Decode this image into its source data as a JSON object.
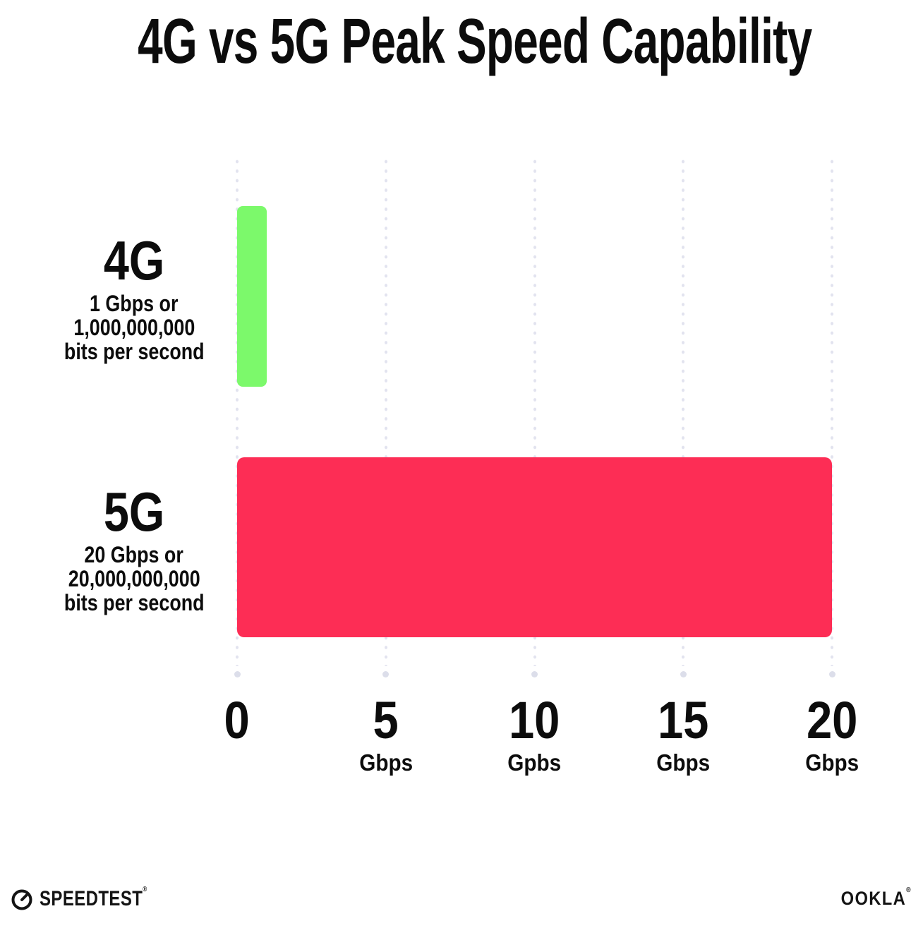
{
  "title": "4G vs 5G Peak Speed Capability",
  "chart_data": {
    "type": "bar",
    "orientation": "horizontal",
    "title": "4G vs 5G Peak Speed Capability",
    "xlabel": "Gbps",
    "xlim": [
      0,
      20
    ],
    "grid": "dotted-vertical",
    "legend": "none",
    "categories": [
      "4G",
      "5G"
    ],
    "values": [
      1,
      20
    ],
    "series": [
      {
        "label": "4G",
        "value": 1,
        "color": "#7cf96b",
        "description_lines": [
          "1 Gbps or",
          "1,000,000,000",
          "bits per second"
        ]
      },
      {
        "label": "5G",
        "value": 20,
        "color": "#fd2d55",
        "description_lines": [
          "20 Gbps or",
          "20,000,000,000",
          "bits per second"
        ]
      }
    ],
    "ticks": [
      {
        "value": 0,
        "label": "0",
        "unit": ""
      },
      {
        "value": 5,
        "label": "5",
        "unit": "Gbps"
      },
      {
        "value": 10,
        "label": "10",
        "unit": "Gpbs"
      },
      {
        "value": 15,
        "label": "15",
        "unit": "Gbps"
      },
      {
        "value": 20,
        "label": "20",
        "unit": "Gbps"
      }
    ]
  },
  "footer": {
    "speedtest_label": "SPEEDTEST",
    "speedtest_trademark": "®",
    "ookla_label": "OOKLA",
    "ookla_trademark": "®"
  },
  "colors": {
    "bar_4g": "#7cf96b",
    "bar_5g": "#fd2d55",
    "gridline_dot": "#e2e3ef",
    "gridline_end_dot": "#dcdeea",
    "text": "#0c0c0c",
    "background": "#ffffff"
  }
}
